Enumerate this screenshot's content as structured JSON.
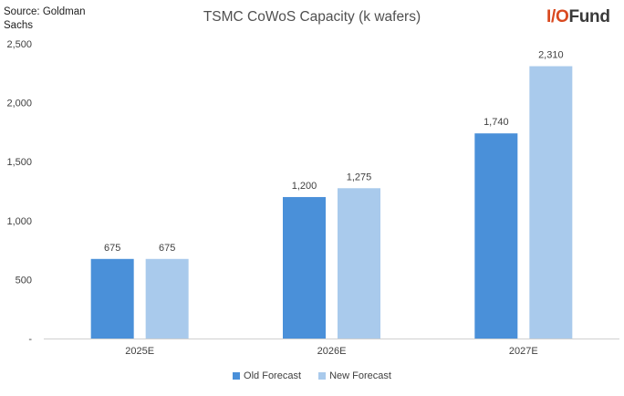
{
  "source_note": "Source: Goldman Sachs",
  "logo": {
    "part1": "I/O",
    "part2": "Fund"
  },
  "chart_data": {
    "type": "bar",
    "title": "TSMC CoWoS Capacity (k wafers)",
    "xlabel": "",
    "ylabel": "",
    "categories": [
      "2025E",
      "2026E",
      "2027E"
    ],
    "series": [
      {
        "name": "Old Forecast",
        "color": "#4a90d9",
        "values": [
          675,
          1200,
          1740
        ]
      },
      {
        "name": "New Forecast",
        "color": "#a9caec",
        "values": [
          675,
          1275,
          2310
        ]
      }
    ],
    "ylim": [
      0,
      2500
    ],
    "yticks": [
      0,
      500,
      1000,
      1500,
      2000,
      2500
    ],
    "ytick_labels": [
      "-",
      "500",
      "1,000",
      "1,500",
      "2,000",
      "2,500"
    ],
    "data_labels": [
      [
        "675",
        "1,200",
        "1,740"
      ],
      [
        "675",
        "1,275",
        "2,310"
      ]
    ],
    "grid": false,
    "legend_position": "bottom"
  }
}
